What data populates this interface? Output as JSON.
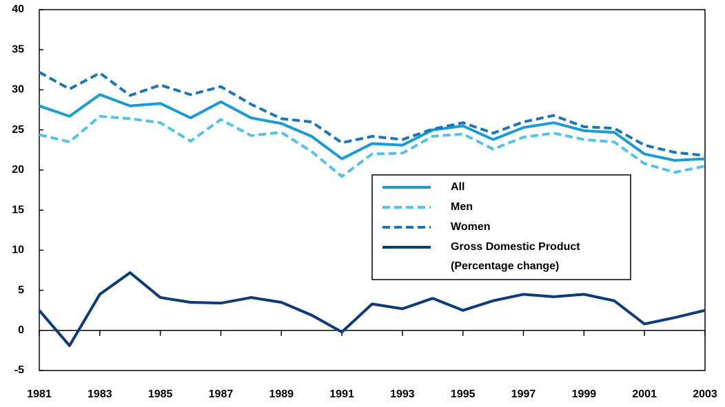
{
  "chart_data": {
    "type": "line",
    "x": [
      1981,
      1982,
      1983,
      1984,
      1985,
      1986,
      1987,
      1988,
      1989,
      1990,
      1991,
      1992,
      1993,
      1994,
      1995,
      1996,
      1997,
      1998,
      1999,
      2000,
      2001,
      2002,
      2003
    ],
    "series": [
      {
        "name": "All",
        "color": "#1a9ad6",
        "dashed": false,
        "values": [
          28.0,
          26.7,
          29.4,
          28.0,
          28.3,
          26.5,
          28.5,
          26.5,
          25.8,
          24.2,
          21.4,
          23.3,
          23.1,
          25.0,
          25.5,
          23.8,
          25.3,
          25.9,
          24.9,
          24.7,
          22.0,
          21.2,
          21.4
        ]
      },
      {
        "name": "Men",
        "color": "#4fc3e8",
        "dashed": true,
        "values": [
          24.4,
          23.5,
          26.7,
          26.4,
          25.9,
          23.6,
          26.3,
          24.3,
          24.7,
          22.3,
          19.2,
          22.0,
          22.1,
          24.2,
          24.5,
          22.6,
          24.1,
          24.6,
          23.8,
          23.5,
          20.8,
          19.7,
          20.5
        ]
      },
      {
        "name": "Women",
        "color": "#1a77b5",
        "dashed": true,
        "values": [
          32.2,
          30.1,
          32.1,
          29.3,
          30.6,
          29.4,
          30.4,
          28.2,
          26.4,
          26.0,
          23.4,
          24.2,
          23.8,
          25.1,
          25.9,
          24.6,
          26.0,
          26.8,
          25.4,
          25.2,
          23.1,
          22.2,
          21.8
        ]
      },
      {
        "name": "Gross Domestic Product",
        "note": "(Percentage change)",
        "color": "#0d3a78",
        "dashed": false,
        "values": [
          2.5,
          -1.9,
          4.5,
          7.2,
          4.1,
          3.5,
          3.4,
          4.1,
          3.5,
          1.9,
          -0.2,
          3.3,
          2.7,
          4.0,
          2.5,
          3.7,
          4.5,
          4.2,
          4.5,
          3.7,
          0.8,
          1.6,
          2.5
        ]
      }
    ],
    "xlim": [
      1981,
      2003
    ],
    "xticks": [
      1981,
      1983,
      1985,
      1987,
      1989,
      1991,
      1993,
      1995,
      1997,
      1999,
      2001,
      2003
    ],
    "ylim": [
      -5,
      40
    ],
    "yticks": [
      -5,
      0,
      5,
      10,
      15,
      20,
      25,
      30,
      35,
      40
    ]
  }
}
